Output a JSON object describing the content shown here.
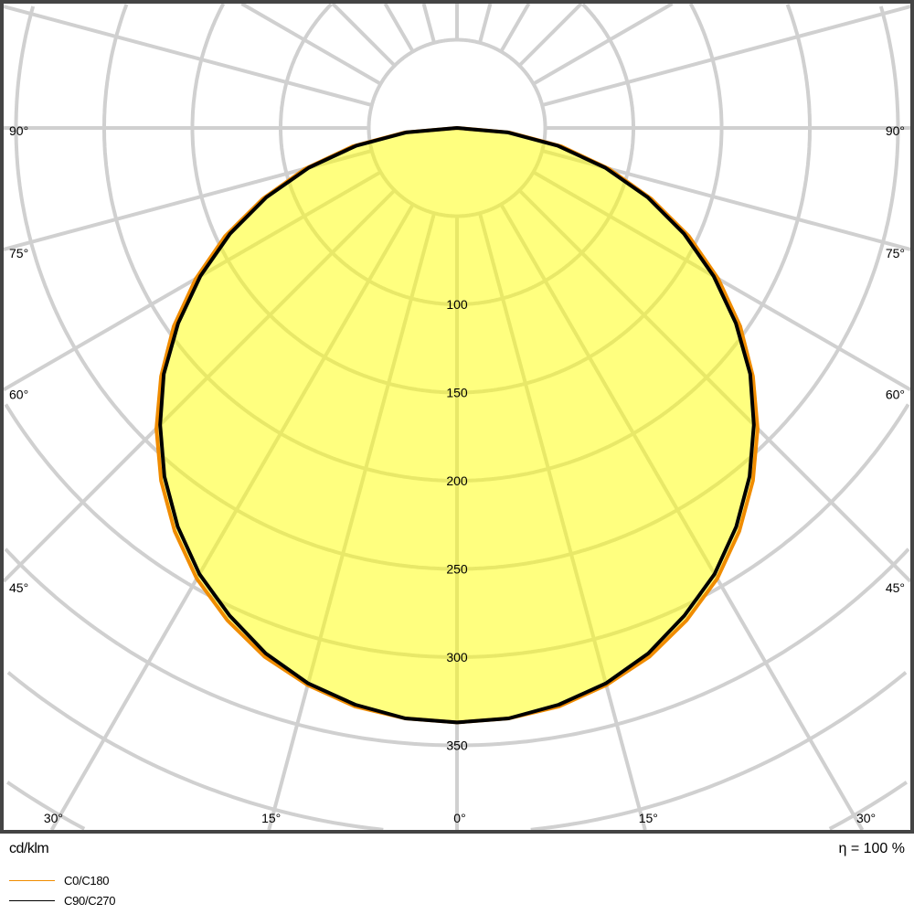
{
  "chart_data": {
    "type": "polar",
    "unit_label": "cd/klm",
    "efficiency_label": "η = 100 %",
    "radial_ticks": [
      100,
      150,
      200,
      250,
      300,
      350
    ],
    "radial_grid_step": 50,
    "angle_grid_step_deg": 15,
    "angle_labels": {
      "left": [
        "90°",
        "75°",
        "60°",
        "45°"
      ],
      "bottom": [
        "30°",
        "15°",
        "0°",
        "15°",
        "30°"
      ],
      "right": [
        "90°",
        "75°",
        "60°",
        "45°"
      ]
    },
    "fill_color": "#ffff00",
    "grid_color": "#d0d0d0",
    "angles_deg": [
      0,
      5,
      10,
      15,
      20,
      25,
      30,
      35,
      40,
      45,
      50,
      55,
      60,
      65,
      70,
      75,
      80,
      85,
      90
    ],
    "series": [
      {
        "name": "C0/C180",
        "color": "#f08c00",
        "values": [
          337,
          336,
          333,
          327,
          319,
          308,
          295,
          279,
          261,
          241,
          219,
          196,
          171,
          145,
          117,
          89,
          60,
          30,
          0
        ]
      },
      {
        "name": "C90/C270",
        "color": "#000000",
        "values": [
          337,
          336,
          332,
          326,
          317,
          305,
          292,
          276,
          258,
          238,
          217,
          193,
          168,
          142,
          115,
          87,
          58,
          29,
          0
        ]
      }
    ]
  }
}
